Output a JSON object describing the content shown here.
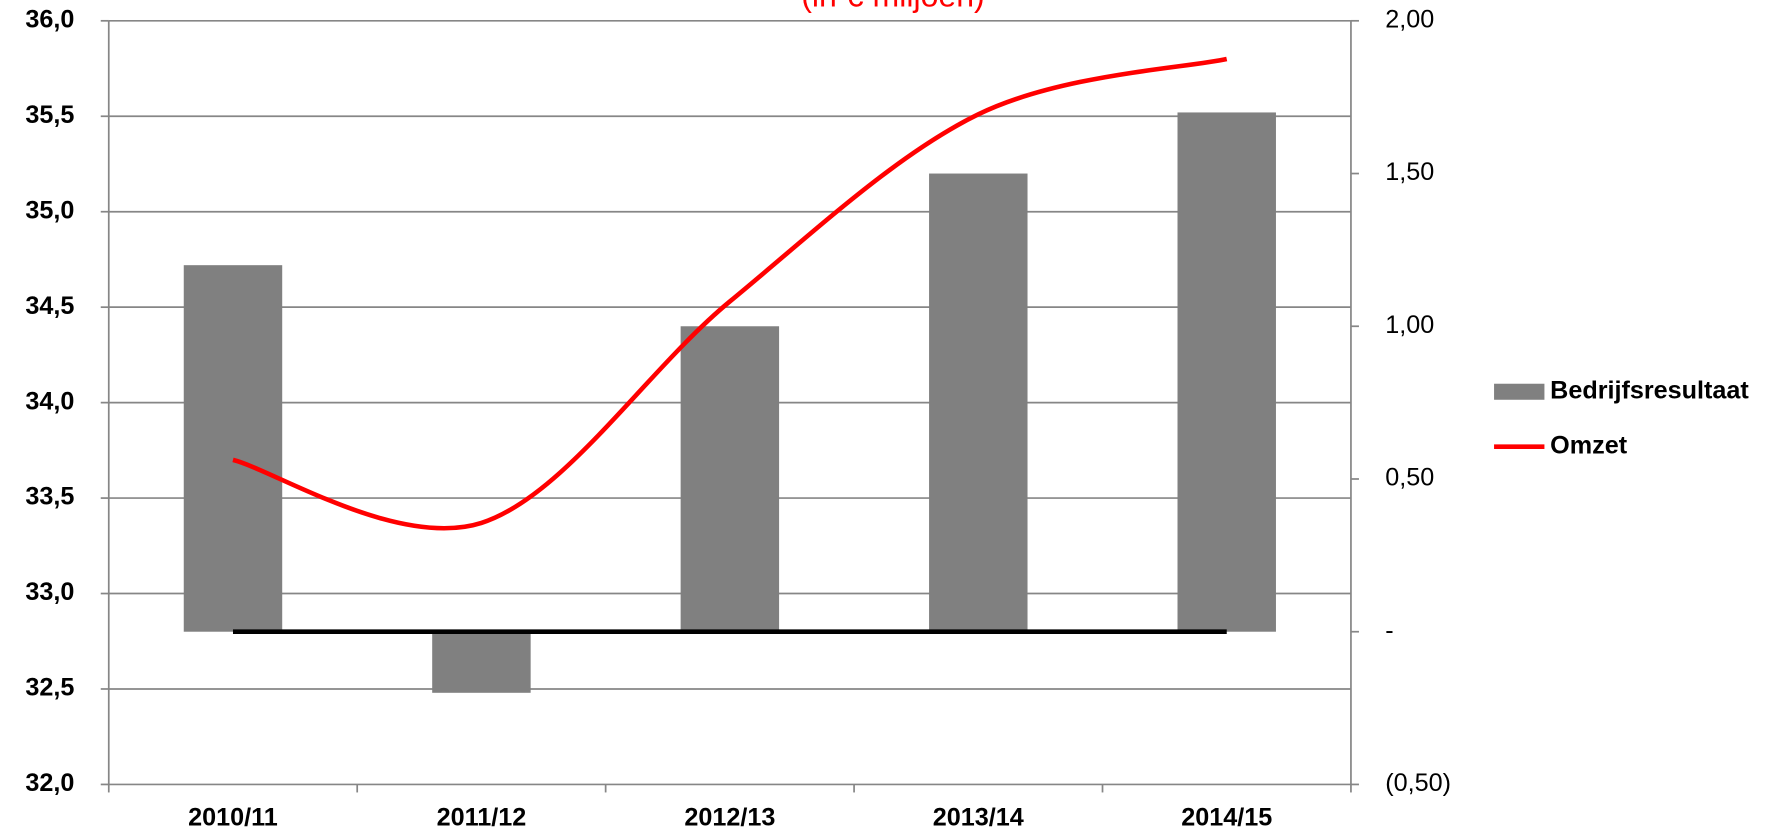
{
  "chart_data": {
    "type": "bar_line",
    "title": "(in € miljoen)",
    "categories": [
      "2010/11",
      "2011/12",
      "2012/13",
      "2013/14",
      "2014/15"
    ],
    "series": [
      {
        "name": "Bedrijfsresultaat",
        "type": "bar",
        "color": "#808080",
        "axis": "y2",
        "values": [
          1.2,
          -0.2,
          1.0,
          1.5,
          1.7
        ]
      },
      {
        "name": "Omzet",
        "type": "line",
        "color": "#ff0000",
        "axis": "y",
        "values": [
          33.7,
          33.37,
          34.53,
          35.51,
          35.8
        ]
      }
    ],
    "ylim": [
      32.0,
      36.0
    ],
    "yticks": [
      {
        "value": 32.0,
        "label": "32,0"
      },
      {
        "value": 32.5,
        "label": "32,5"
      },
      {
        "value": 33.0,
        "label": "33,0"
      },
      {
        "value": 33.5,
        "label": "33,5"
      },
      {
        "value": 34.0,
        "label": "34,0"
      },
      {
        "value": 34.5,
        "label": "34,5"
      },
      {
        "value": 35.0,
        "label": "35,0"
      },
      {
        "value": 35.5,
        "label": "35,5"
      },
      {
        "value": 36.0,
        "label": "36,0"
      }
    ],
    "y2lim": [
      -0.5,
      2.0
    ],
    "y2ticks": [
      {
        "value": -0.5,
        "label": "(0,50)"
      },
      {
        "value": 0,
        "label": "-"
      },
      {
        "value": 0.5,
        "label": "0,50"
      },
      {
        "value": 1.0,
        "label": "1,00"
      },
      {
        "value": 1.5,
        "label": "1,50"
      },
      {
        "value": 2.0,
        "label": "2,00"
      }
    ],
    "grid": true,
    "legend": "right"
  }
}
